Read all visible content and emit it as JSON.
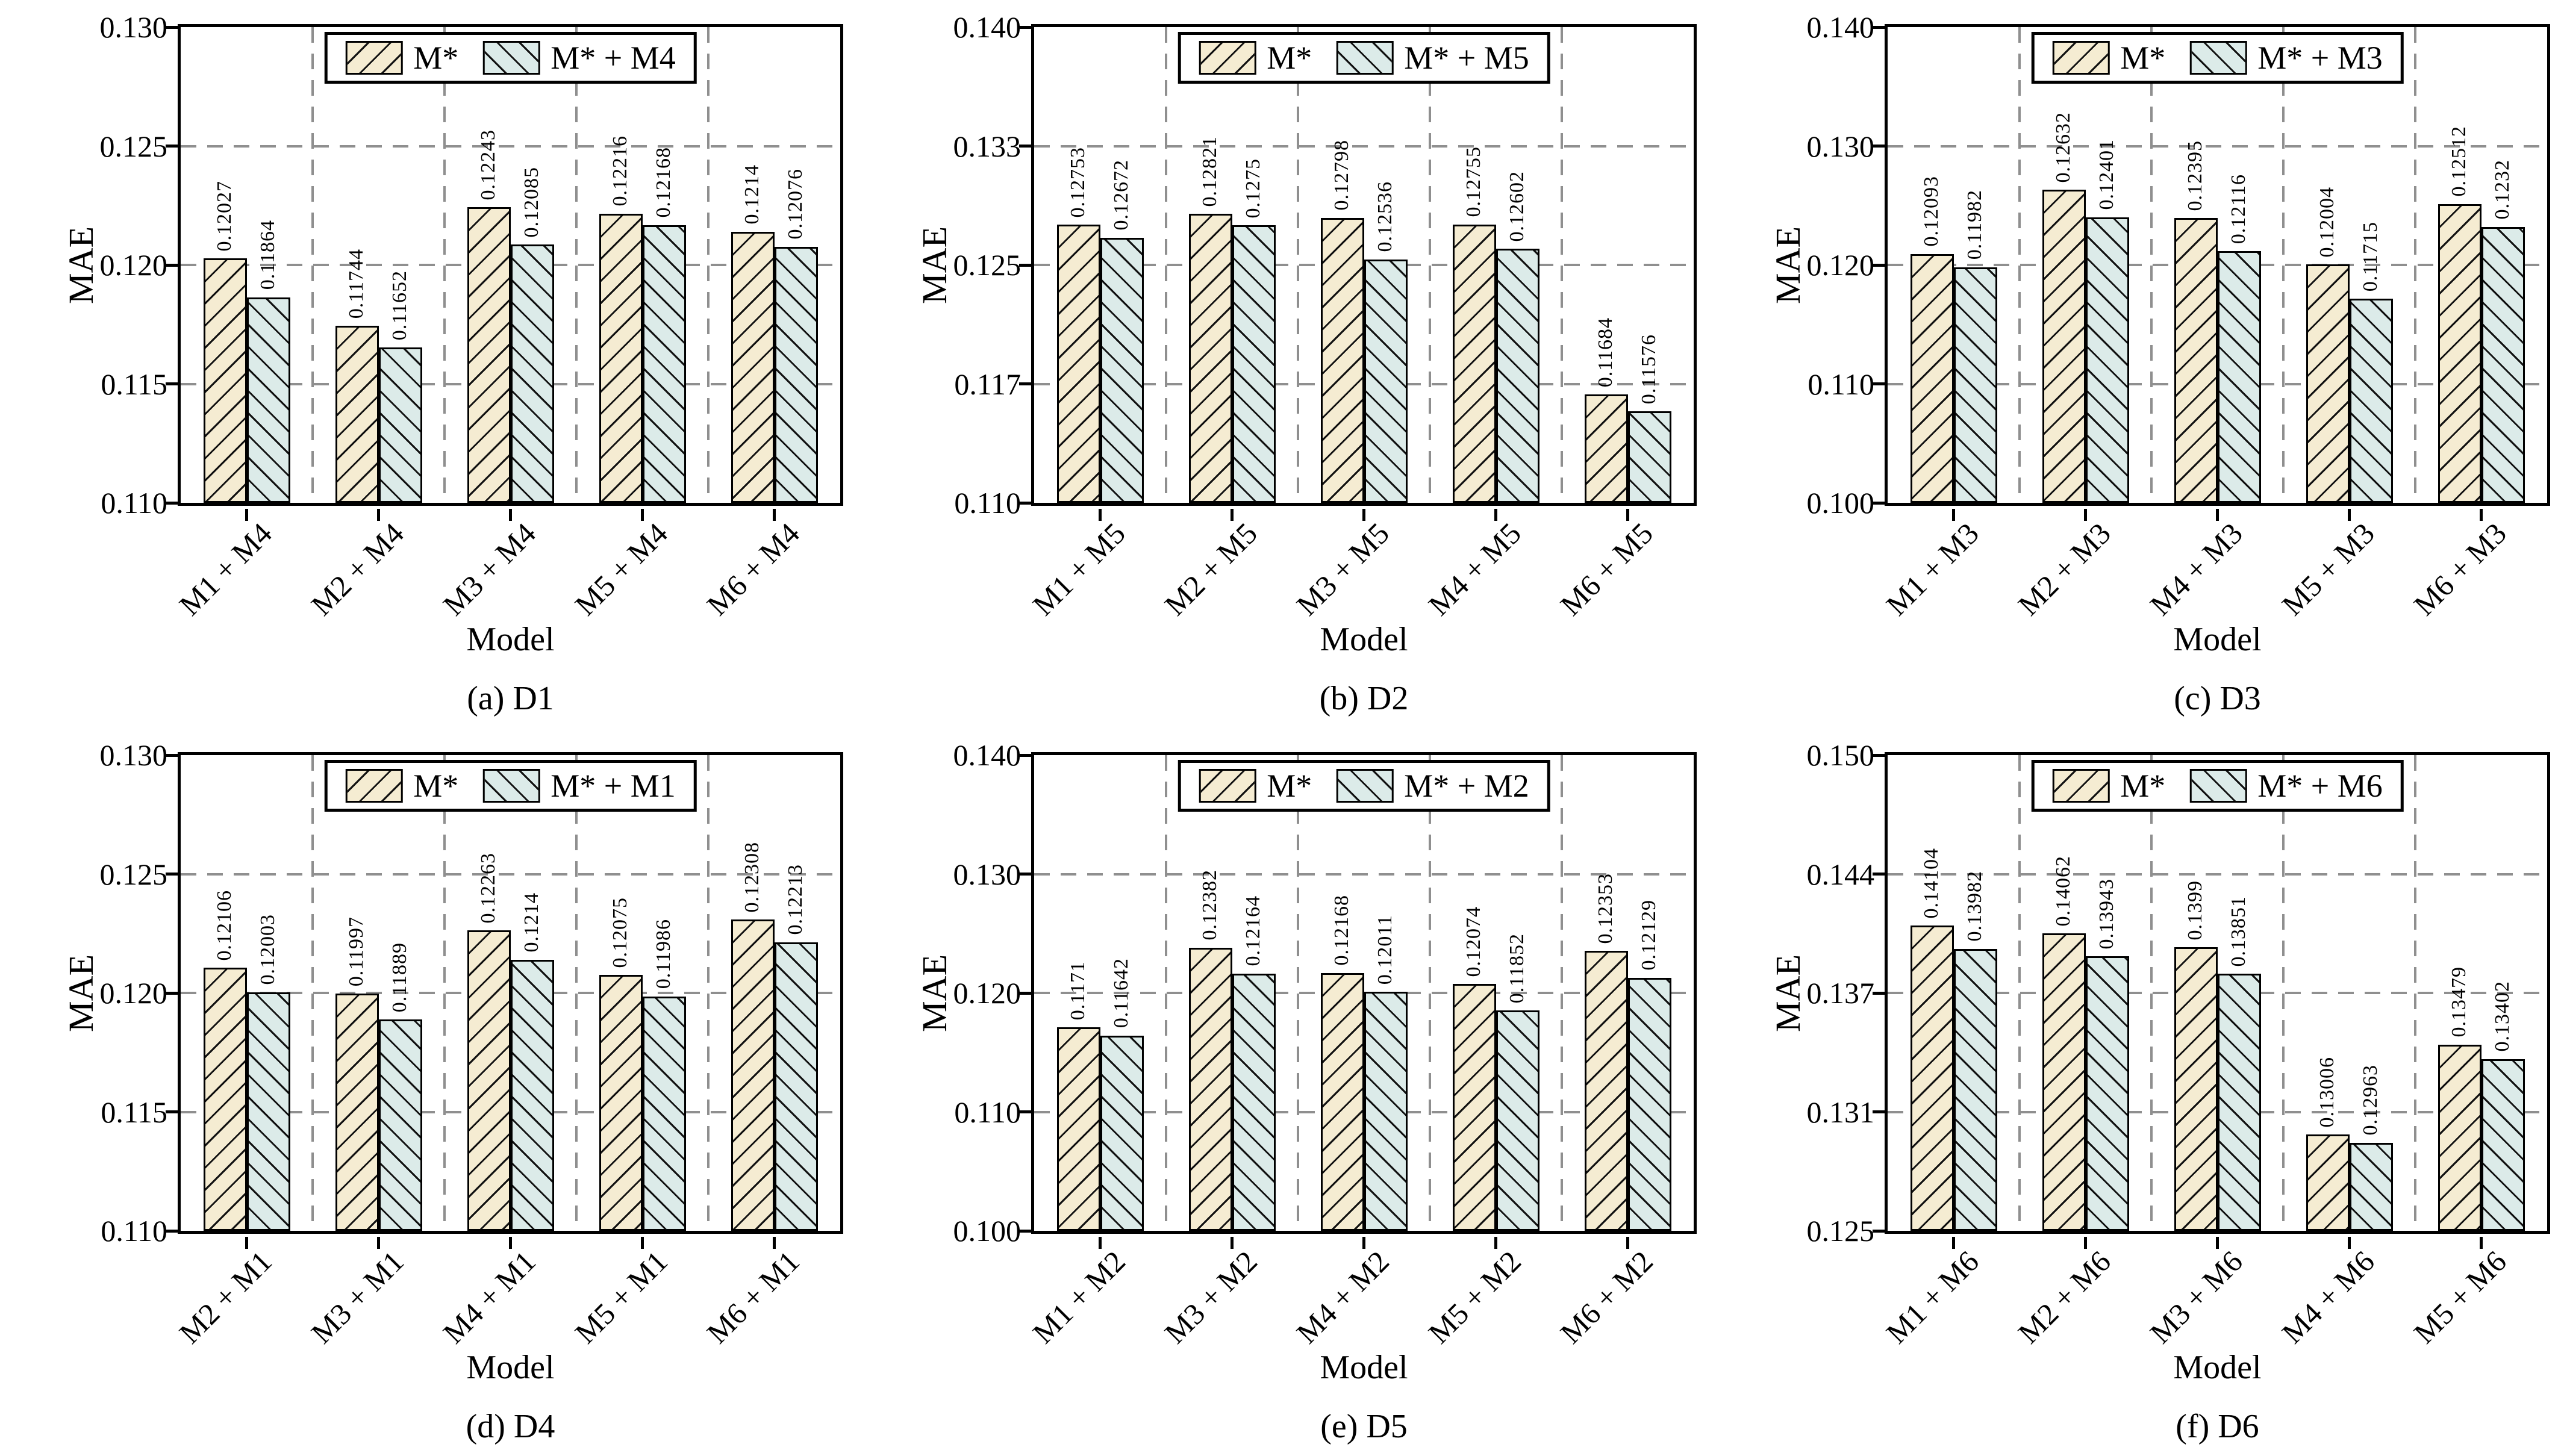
{
  "figure": {
    "description": "Six grouped bar charts comparing MAE of base models M* vs M* combined with another model on datasets D1-D6"
  },
  "style": {
    "series1_fill": "#f5ecd2",
    "series2_fill": "#dcebe9",
    "hatch_color": "#111111",
    "grid_color": "#8f8f8f",
    "axis_color": "#000000",
    "background": "#ffffff"
  },
  "chart_data": [
    {
      "type": "bar",
      "title": "(a) D1",
      "xlabel": "Model",
      "ylabel": "MAE",
      "grid": true,
      "legend_position": "top center",
      "categories": [
        "M1 + M4",
        "M2 + M4",
        "M3 + M4",
        "M5 + M4",
        "M6 + M4"
      ],
      "series": [
        {
          "name": "M*",
          "values": [
            0.12027,
            0.11744,
            0.12243,
            0.12216,
            0.1214
          ]
        },
        {
          "name": "M* + M4",
          "values": [
            0.11864,
            0.11652,
            0.12085,
            0.12168,
            0.12076
          ]
        }
      ],
      "ylim": [
        0.11,
        0.13
      ],
      "yticks": [
        "0.110",
        "0.115",
        "0.120",
        "0.125",
        "0.130"
      ]
    },
    {
      "type": "bar",
      "title": "(b) D2",
      "xlabel": "Model",
      "ylabel": "MAE",
      "grid": true,
      "legend_position": "top center",
      "categories": [
        "M1 + M5",
        "M2 + M5",
        "M3 + M5",
        "M4 + M5",
        "M6 + M5"
      ],
      "series": [
        {
          "name": "M*",
          "values": [
            0.12753,
            0.12821,
            0.12798,
            0.12755,
            0.11684
          ]
        },
        {
          "name": "M* + M5",
          "values": [
            0.12672,
            0.1275,
            0.12536,
            0.12602,
            0.11576
          ]
        }
      ],
      "ylim": [
        0.11,
        0.14
      ],
      "yticks": [
        "0.110",
        "0.117",
        "0.125",
        "0.133",
        "0.140"
      ]
    },
    {
      "type": "bar",
      "title": "(c) D3",
      "xlabel": "Model",
      "ylabel": "MAE",
      "grid": true,
      "legend_position": "top center",
      "categories": [
        "M1 + M3",
        "M2 + M3",
        "M4 + M3",
        "M5 + M3",
        "M6 + M3"
      ],
      "series": [
        {
          "name": "M*",
          "values": [
            0.12093,
            0.12632,
            0.12395,
            0.12004,
            0.12512
          ]
        },
        {
          "name": "M* + M3",
          "values": [
            0.11982,
            0.12401,
            0.12116,
            0.11715,
            0.1232
          ]
        }
      ],
      "ylim": [
        0.1,
        0.14
      ],
      "yticks": [
        "0.100",
        "0.110",
        "0.120",
        "0.130",
        "0.140"
      ]
    },
    {
      "type": "bar",
      "title": "(d) D4",
      "xlabel": "Model",
      "ylabel": "MAE",
      "grid": true,
      "legend_position": "top center",
      "categories": [
        "M2 + M1",
        "M3 + M1",
        "M4 + M1",
        "M5 + M1",
        "M6 + M1"
      ],
      "series": [
        {
          "name": "M*",
          "values": [
            0.12106,
            0.11997,
            0.12263,
            0.12075,
            0.12308
          ]
        },
        {
          "name": "M* + M1",
          "values": [
            0.12003,
            0.11889,
            0.1214,
            0.11986,
            0.12213
          ]
        }
      ],
      "ylim": [
        0.11,
        0.13
      ],
      "yticks": [
        "0.110",
        "0.115",
        "0.120",
        "0.125",
        "0.130"
      ]
    },
    {
      "type": "bar",
      "title": "(e) D5",
      "xlabel": "Model",
      "ylabel": "MAE",
      "grid": true,
      "legend_position": "top center",
      "categories": [
        "M1 + M2",
        "M3 + M2",
        "M4 + M2",
        "M5 + M2",
        "M6 + M2"
      ],
      "series": [
        {
          "name": "M*",
          "values": [
            0.1171,
            0.12382,
            0.12168,
            0.12074,
            0.12353
          ]
        },
        {
          "name": "M* + M2",
          "values": [
            0.11642,
            0.12164,
            0.12011,
            0.11852,
            0.12129
          ]
        }
      ],
      "ylim": [
        0.1,
        0.14
      ],
      "yticks": [
        "0.100",
        "0.110",
        "0.120",
        "0.130",
        "0.140"
      ]
    },
    {
      "type": "bar",
      "title": "(f) D6",
      "xlabel": "Model",
      "ylabel": "MAE",
      "grid": true,
      "legend_position": "top center",
      "categories": [
        "M1 + M6",
        "M2 + M6",
        "M3 + M6",
        "M4 + M6",
        "M5 + M6"
      ],
      "series": [
        {
          "name": "M*",
          "values": [
            0.14104,
            0.14062,
            0.1399,
            0.13006,
            0.13479
          ]
        },
        {
          "name": "M* + M6",
          "values": [
            0.13982,
            0.13943,
            0.13851,
            0.12963,
            0.13402
          ]
        }
      ],
      "ylim": [
        0.125,
        0.15
      ],
      "yticks": [
        "0.125",
        "0.131",
        "0.137",
        "0.144",
        "0.150"
      ]
    }
  ]
}
